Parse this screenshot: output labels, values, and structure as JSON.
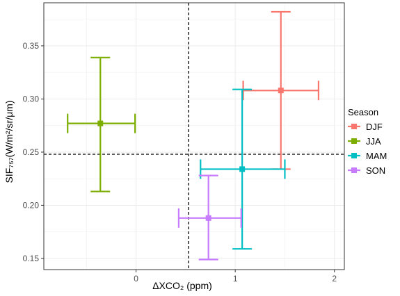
{
  "chart_data": {
    "type": "scatter",
    "xlabel": "ΔXCO₂ (ppm)",
    "ylabel": "SIF₇₅₇(W/m²/sr/μm)",
    "xlim": [
      -0.93,
      2.1
    ],
    "ylim": [
      0.1395,
      0.3905
    ],
    "xticks": [
      0,
      1,
      2
    ],
    "xtick_labels": [
      "0",
      "1",
      "2"
    ],
    "yticks": [
      0.15,
      0.2,
      0.25,
      0.3,
      0.35
    ],
    "ytick_labels": [
      "0.15",
      "0.20",
      "0.25",
      "0.30",
      "0.35"
    ],
    "grid": true,
    "hline": 0.248,
    "vline": 0.53,
    "legend": {
      "title": "Season",
      "position": "right",
      "entries": [
        "DJF",
        "JJA",
        "MAM",
        "SON"
      ]
    },
    "series": [
      {
        "name": "DJF",
        "color": "#F8766D",
        "x": 1.46,
        "y": 0.308,
        "xmin": 1.08,
        "xmax": 1.84,
        "ymin": 0.234,
        "ymax": 0.382
      },
      {
        "name": "JJA",
        "color": "#7CAE00",
        "x": -0.36,
        "y": 0.277,
        "xmin": -0.69,
        "xmax": -0.01,
        "ymin": 0.213,
        "ymax": 0.339
      },
      {
        "name": "MAM",
        "color": "#00BFC4",
        "x": 1.07,
        "y": 0.234,
        "xmin": 0.65,
        "xmax": 1.5,
        "ymin": 0.159,
        "ymax": 0.309
      },
      {
        "name": "SON",
        "color": "#C77CFF",
        "x": 0.73,
        "y": 0.188,
        "xmin": 0.43,
        "xmax": 1.06,
        "ymin": 0.149,
        "ymax": 0.228
      }
    ]
  }
}
